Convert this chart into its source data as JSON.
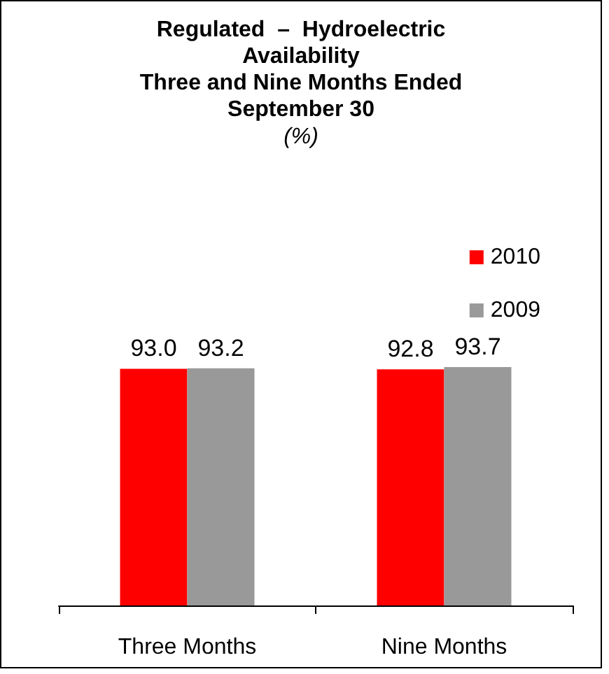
{
  "chart_data": {
    "type": "bar",
    "title": "Regulated  –  Hydroelectric\nAvailability\nThree and Nine Months Ended\nSeptember 30",
    "subtitle": "(%)",
    "categories": [
      "Three Months",
      "Nine Months"
    ],
    "series": [
      {
        "name": "2010",
        "color": "#ff0000",
        "values": [
          93.0,
          92.8
        ],
        "value_labels": [
          "93.0",
          "92.8"
        ]
      },
      {
        "name": "2009",
        "color": "#999999",
        "values": [
          93.2,
          93.7
        ],
        "value_labels": [
          "93.2",
          "93.7"
        ]
      }
    ],
    "legend": "top right"
  }
}
